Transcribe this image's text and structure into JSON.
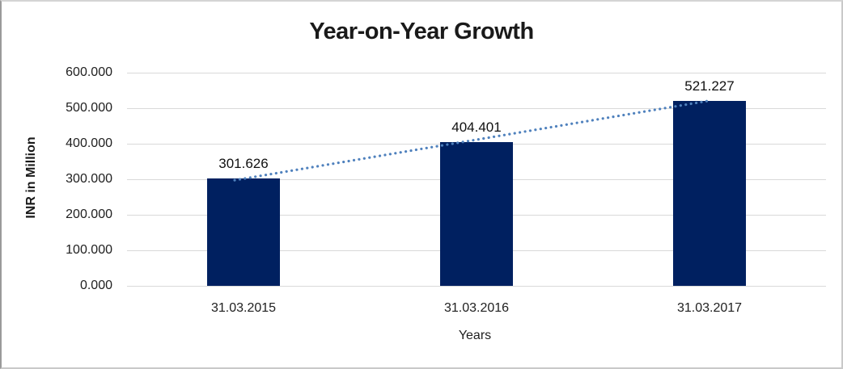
{
  "chart_data": {
    "type": "bar",
    "title": "Year-on-Year Growth",
    "xlabel": "Years",
    "ylabel": "INR in Million",
    "categories": [
      "31.03.2015",
      "31.03.2016",
      "31.03.2017"
    ],
    "values": [
      301.626,
      404.401,
      521.227
    ],
    "data_labels": [
      "301.626",
      "404.401",
      "521.227"
    ],
    "y_ticks": [
      "600.000",
      "500.000",
      "400.000",
      "300.000",
      "200.000",
      "100.000",
      "0.000"
    ],
    "ylim": [
      0,
      600
    ],
    "grid": true,
    "legend": false,
    "trendline": true,
    "colors": {
      "bar": "#002060",
      "trendline": "#4f81bd",
      "gridline": "#d9d9d9",
      "text": "#1a1a1a"
    }
  }
}
